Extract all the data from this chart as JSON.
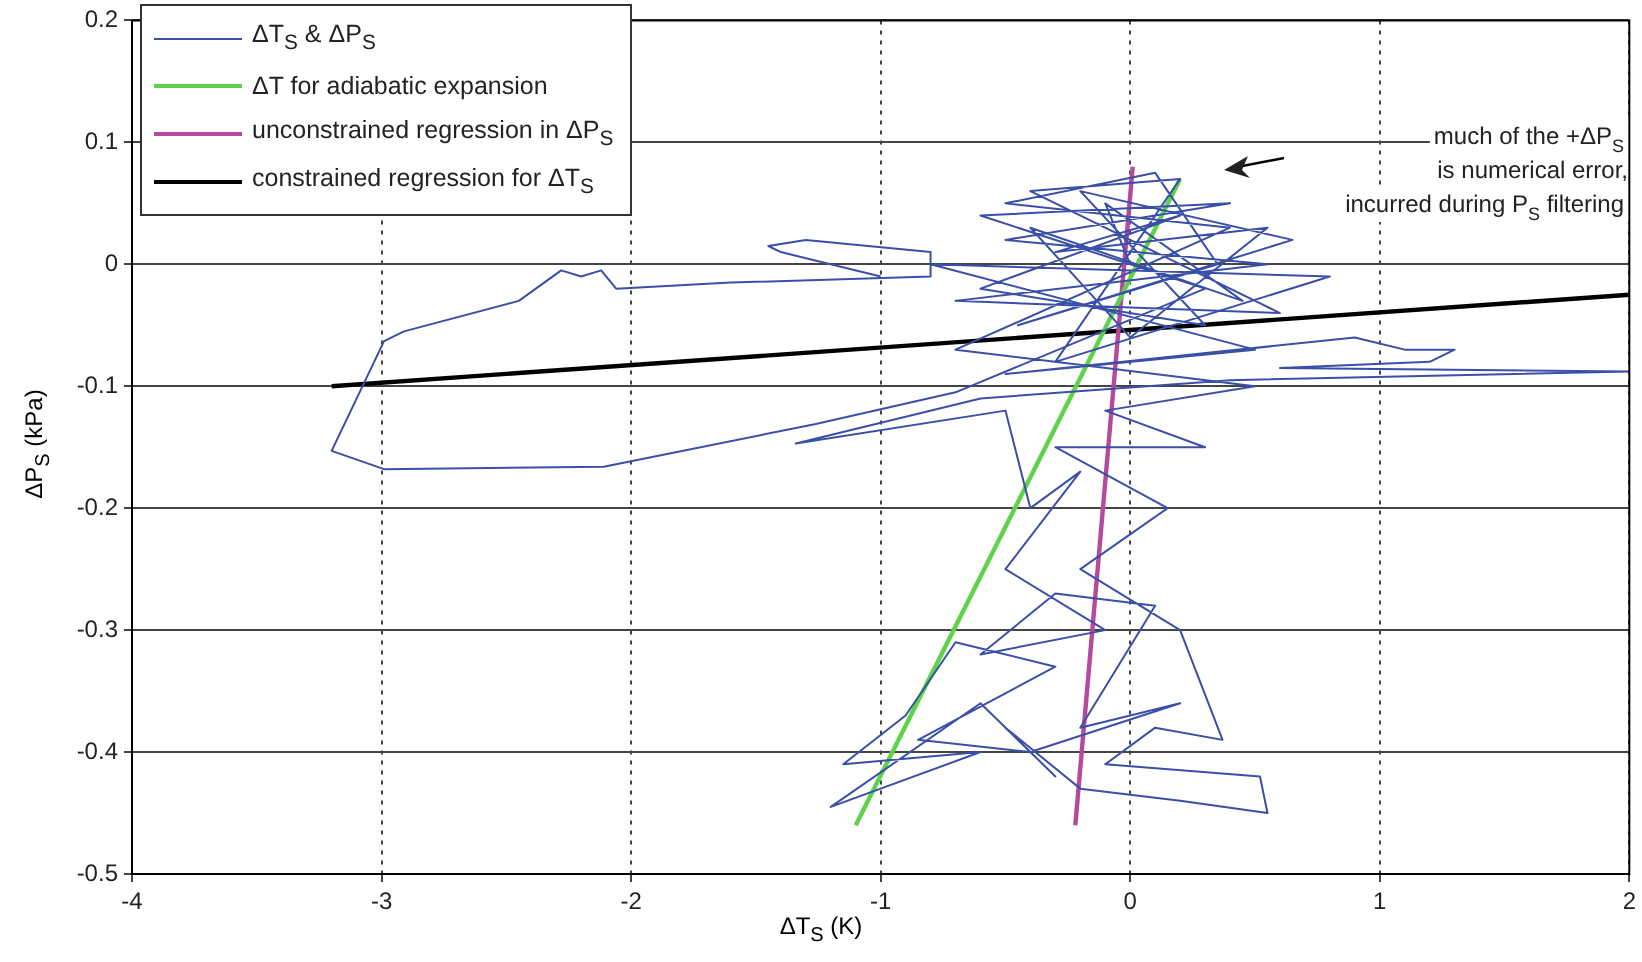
{
  "chart_data": {
    "type": "line",
    "xlabel": "ΔT$_{S}$ (K)",
    "ylabel": "ΔP$_{S}$ (kPa)",
    "xlim": [
      -4,
      2
    ],
    "xticks": [
      -4,
      -3,
      -2,
      -1,
      0,
      1,
      2
    ],
    "ylim": [
      -0.5,
      0.2
    ],
    "yticks": [
      -0.5,
      -0.4,
      -0.3,
      -0.2,
      -0.1,
      0,
      0.1,
      0.2
    ],
    "grid": true,
    "legend": "top left",
    "marker": "none",
    "line_style": "solid",
    "annotations": [
      "much of the +ΔP$_{S}$\nis numerical error,\nincurred during P$_{S}$ filtering"
    ],
    "series": [
      {
        "name": "ΔT$_{S}$ & ΔP$_{S}$",
        "color": "#3a4fa8",
        "type": "line",
        "x": [
          -1.0,
          -1.4,
          -1.45,
          -1.3,
          -0.8,
          -0.8,
          -1.6,
          -2.06,
          -2.12,
          -2.2,
          -2.28,
          -2.45,
          -2.91,
          -2.99,
          -3.2,
          -2.99,
          -2.11,
          -1.26,
          -0.7,
          0.3,
          -0.6,
          0.4,
          -0.5,
          0.55,
          -0.7,
          0.6,
          -0.4,
          0.2,
          -0.3,
          0.8,
          -0.8,
          0.5,
          -0.5,
          0.9,
          1.1,
          1.3,
          1.2,
          0.6,
          2.0,
          0.4,
          -0.6,
          -1.34,
          -0.5,
          -0.4,
          -0.2,
          -0.5,
          -0.1,
          -0.6,
          -0.3,
          0.1,
          -0.2,
          0.2,
          -0.4,
          -0.85,
          -0.3,
          -0.7,
          -0.9,
          -1.15,
          -0.6,
          -1.2,
          -0.6,
          -0.3,
          -0.5,
          -0.2,
          0.2,
          0.55,
          0.52,
          -0.1,
          0.1,
          0.37,
          0.2,
          -0.2,
          0.15,
          -0.3,
          0.3,
          -0.1,
          0.5,
          -0.7,
          0.4,
          -0.5,
          0.1,
          0.35,
          -0.45,
          0.65,
          -0.2,
          0.3,
          -0.6,
          0.2,
          -0.3,
          0.55,
          0.0,
          -0.4,
          0.45,
          -0.1,
          0.0
        ],
        "values": [
          -0.01,
          0.01,
          0.015,
          0.02,
          0.01,
          -0.01,
          -0.015,
          -0.02,
          -0.005,
          -0.01,
          -0.005,
          -0.03,
          -0.055,
          -0.063,
          -0.153,
          -0.168,
          -0.166,
          -0.131,
          -0.105,
          -0.02,
          0.04,
          0.05,
          0.02,
          0.0,
          -0.03,
          -0.04,
          0.06,
          0.07,
          -0.08,
          -0.01,
          0.0,
          -0.07,
          -0.09,
          -0.06,
          -0.07,
          -0.07,
          -0.08,
          -0.085,
          -0.088,
          -0.095,
          -0.11,
          -0.147,
          -0.12,
          -0.2,
          -0.17,
          -0.25,
          -0.3,
          -0.32,
          -0.27,
          -0.28,
          -0.38,
          -0.36,
          -0.4,
          -0.39,
          -0.33,
          -0.31,
          -0.37,
          -0.41,
          -0.4,
          -0.445,
          -0.36,
          -0.42,
          -0.38,
          -0.43,
          -0.44,
          -0.45,
          -0.42,
          -0.41,
          -0.38,
          -0.39,
          -0.3,
          -0.25,
          -0.2,
          -0.15,
          -0.15,
          -0.12,
          -0.1,
          -0.07,
          0.03,
          0.05,
          0.075,
          0.0,
          -0.05,
          0.02,
          0.06,
          -0.05,
          -0.02,
          0.04,
          0.01,
          0.03,
          -0.06,
          0.03,
          -0.03,
          0.05,
          0.0
        ]
      },
      {
        "name": "ΔT for adiabatic expansion",
        "color": "#5dd34a",
        "type": "line",
        "x": [
          -1.1,
          0.2
        ],
        "values": [
          -0.46,
          0.07
        ]
      },
      {
        "name": "unconstrained regression in ΔP$_{S}$",
        "color": "#b4499e",
        "type": "line",
        "x": [
          -0.22,
          0.01
        ],
        "values": [
          -0.46,
          0.08
        ]
      },
      {
        "name": "constrained regression for ΔT$_{S}$",
        "color": "#000000",
        "type": "line",
        "x": [
          -3.2,
          2.0
        ],
        "values": [
          -0.1,
          -0.025
        ]
      }
    ]
  }
}
